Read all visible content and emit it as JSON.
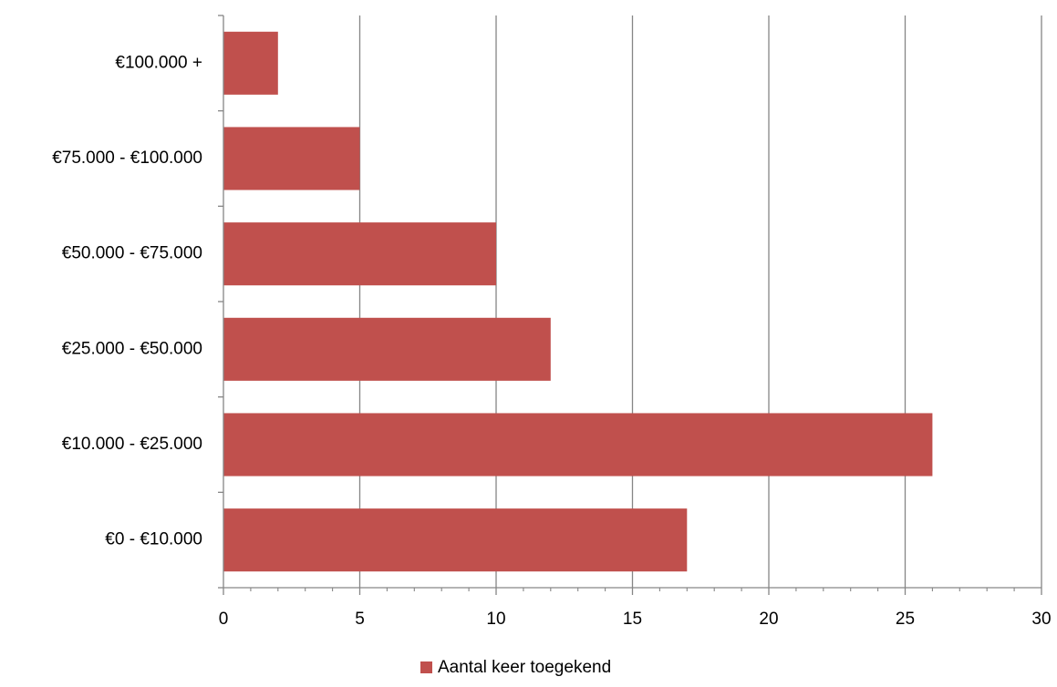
{
  "chart_data": {
    "type": "bar",
    "orientation": "horizontal",
    "categories": [
      "€0 - €10.000",
      "€10.000 - €25.000",
      "€25.000 - €50.000",
      "€50.000 - €75.000",
      "€75.000 - €100.000",
      "€100.000 +"
    ],
    "series": [
      {
        "name": "Aantal keer toegekend",
        "values": [
          17,
          26,
          12,
          10,
          5,
          2
        ],
        "color": "#c0504d"
      }
    ],
    "xlim": [
      0,
      30
    ],
    "xticks": [
      0,
      5,
      10,
      15,
      20,
      25,
      30
    ],
    "title": "",
    "xlabel": "",
    "ylabel": "",
    "grid": true,
    "legend_position": "bottom"
  }
}
